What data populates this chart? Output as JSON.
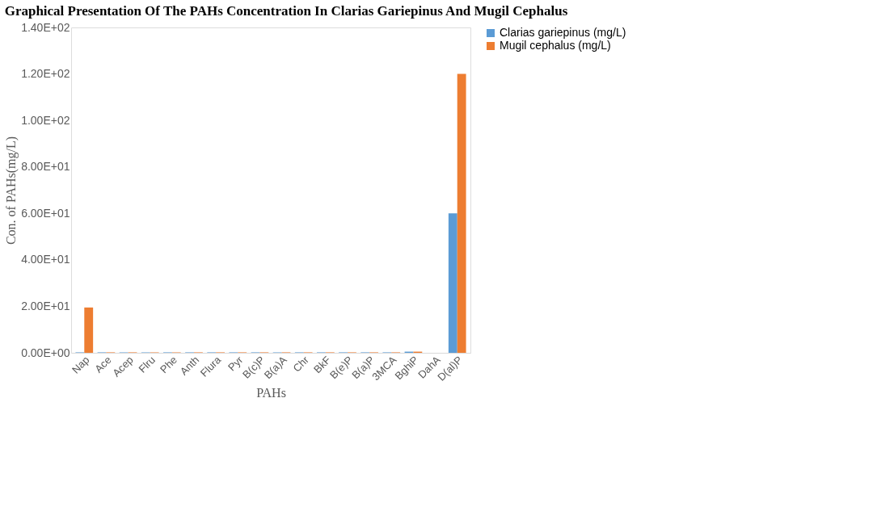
{
  "chart_data": {
    "type": "bar",
    "title": "Graphical Presentation Of The PAHs Concentration In Clarias Gariepinus And Mugil Cephalus",
    "xlabel": "PAHs",
    "ylabel": "Con. of PAHs(mg/L)",
    "categories": [
      "Nap",
      "Ace",
      "Acep",
      "Flru",
      "Phe",
      "Anth",
      "Flura",
      "Pyr",
      "B(c)P",
      "B(a)A",
      "Chr",
      "BkF",
      "B(e)P",
      "B(a)P",
      "3MCA",
      "BghiP",
      "DahA",
      "D(al)P"
    ],
    "series": [
      {
        "name": "Clarias gariepinus (mg/L)",
        "color": "#5b9bd5",
        "values": [
          0.2,
          0.2,
          0.2,
          0.2,
          0.2,
          0.2,
          0.2,
          0.2,
          0.2,
          0.2,
          0.2,
          0.2,
          0.2,
          0.2,
          0.2,
          0.5,
          0,
          60
        ]
      },
      {
        "name": "Mugil cephalus (mg/L)",
        "color": "#ed7d31",
        "values": [
          19.5,
          0.2,
          0.2,
          0.2,
          0.2,
          0.2,
          0.2,
          0.2,
          0.2,
          0.2,
          0.2,
          0.2,
          0.2,
          0.2,
          0.2,
          0.5,
          0,
          120
        ]
      }
    ],
    "ylim": [
      0,
      140
    ],
    "yticks": [
      {
        "value": 0,
        "label": "0.00E+00"
      },
      {
        "value": 20,
        "label": "2.00E+01"
      },
      {
        "value": 40,
        "label": "4.00E+01"
      },
      {
        "value": 60,
        "label": "6.00E+01"
      },
      {
        "value": 80,
        "label": "8.00E+01"
      },
      {
        "value": 100,
        "label": "1.00E+02"
      },
      {
        "value": 120,
        "label": "1.20E+02"
      },
      {
        "value": 140,
        "label": "1.40E+02"
      }
    ],
    "grid": false,
    "legend": "right"
  }
}
